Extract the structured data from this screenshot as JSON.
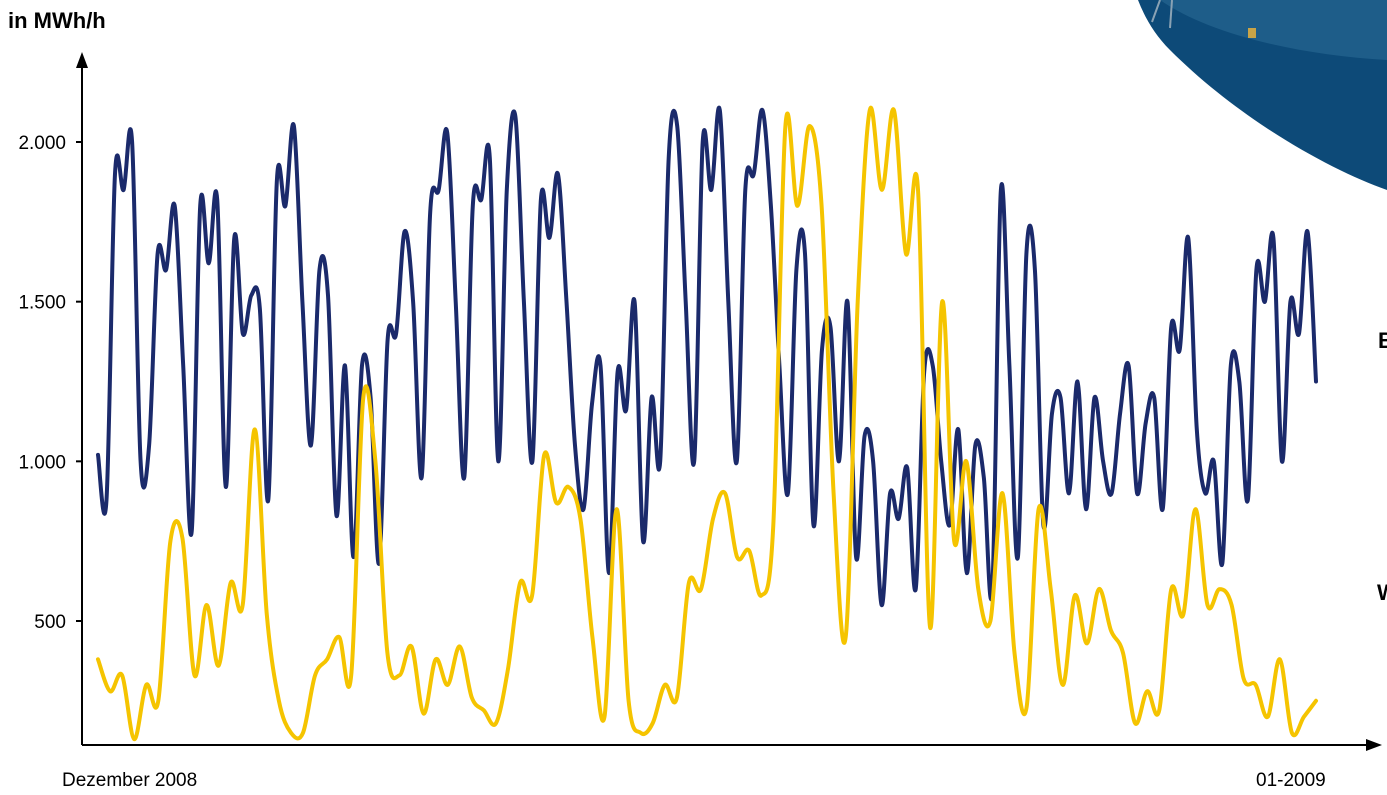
{
  "chart_data": {
    "type": "line",
    "ylabel": "in MWh/h",
    "ylim": [
      0,
      2300
    ],
    "yticks": [
      500,
      1000,
      1500,
      2000
    ],
    "ytick_labels": [
      "500",
      "1.000",
      "1.500",
      "2.000"
    ],
    "x_start_label": "Dezember 2008",
    "x_end_label": "01-2009",
    "edge_labels": [
      "B",
      "W"
    ],
    "series": [
      {
        "color": "#1b2a6b",
        "values": [
          1020,
          880,
          1900,
          1850,
          2000,
          1000,
          1050,
          1650,
          1600,
          1800,
          1300,
          780,
          1800,
          1620,
          1820,
          920,
          1700,
          1400,
          1520,
          1480,
          880,
          1880,
          1800,
          2050,
          1500,
          1050,
          1600,
          1520,
          830,
          1300,
          700,
          1300,
          1200,
          680,
          1380,
          1400,
          1720,
          1500,
          950,
          1780,
          1850,
          2030,
          1500,
          950,
          1800,
          1820,
          1950,
          1000,
          1850,
          2080,
          1500,
          1000,
          1820,
          1700,
          1900,
          1500,
          1050,
          850,
          1180,
          1300,
          650,
          1280,
          1160,
          1500,
          750,
          1200,
          1000,
          1950,
          2050,
          1500,
          1000,
          2000,
          1850,
          2100,
          1500,
          1000,
          1850,
          1900,
          2100,
          1800,
          1300,
          900,
          1600,
          1650,
          800,
          1350,
          1420,
          1000,
          1500,
          700,
          1080,
          1000,
          550,
          900,
          820,
          980,
          600,
          1280,
          1300,
          1000,
          800,
          1100,
          650,
          1050,
          950,
          600,
          1850,
          1300,
          700,
          1650,
          1600,
          800,
          1150,
          1200,
          900,
          1250,
          850,
          1200,
          1000,
          900,
          1150,
          1300,
          900,
          1120,
          1200,
          850,
          1420,
          1350,
          1700,
          1100,
          900,
          1000,
          680,
          1300,
          1250,
          880,
          1600,
          1500,
          1700,
          1000,
          1500,
          1400,
          1720,
          1250
        ]
      },
      {
        "color": "#f5c400",
        "values": [
          380,
          280,
          330,
          130,
          300,
          250,
          750,
          760,
          330,
          550,
          360,
          620,
          550,
          1100,
          520,
          250,
          150,
          150,
          330,
          380,
          450,
          330,
          1200,
          1000,
          400,
          330,
          420,
          210,
          380,
          300,
          420,
          260,
          220,
          180,
          350,
          620,
          580,
          1020,
          870,
          920,
          820,
          450,
          200,
          850,
          250,
          150,
          180,
          300,
          260,
          620,
          600,
          820,
          900,
          700,
          720,
          580,
          800,
          2050,
          1800,
          2050,
          1800,
          900,
          450,
          1500,
          2100,
          1850,
          2100,
          1650,
          1850,
          480,
          1500,
          750,
          1000,
          600,
          500,
          900,
          400,
          230,
          850,
          600,
          300,
          580,
          430,
          600,
          470,
          400,
          180,
          280,
          220,
          600,
          520,
          850,
          550,
          600,
          550,
          320,
          300,
          200,
          380,
          150,
          200,
          250
        ]
      }
    ]
  }
}
